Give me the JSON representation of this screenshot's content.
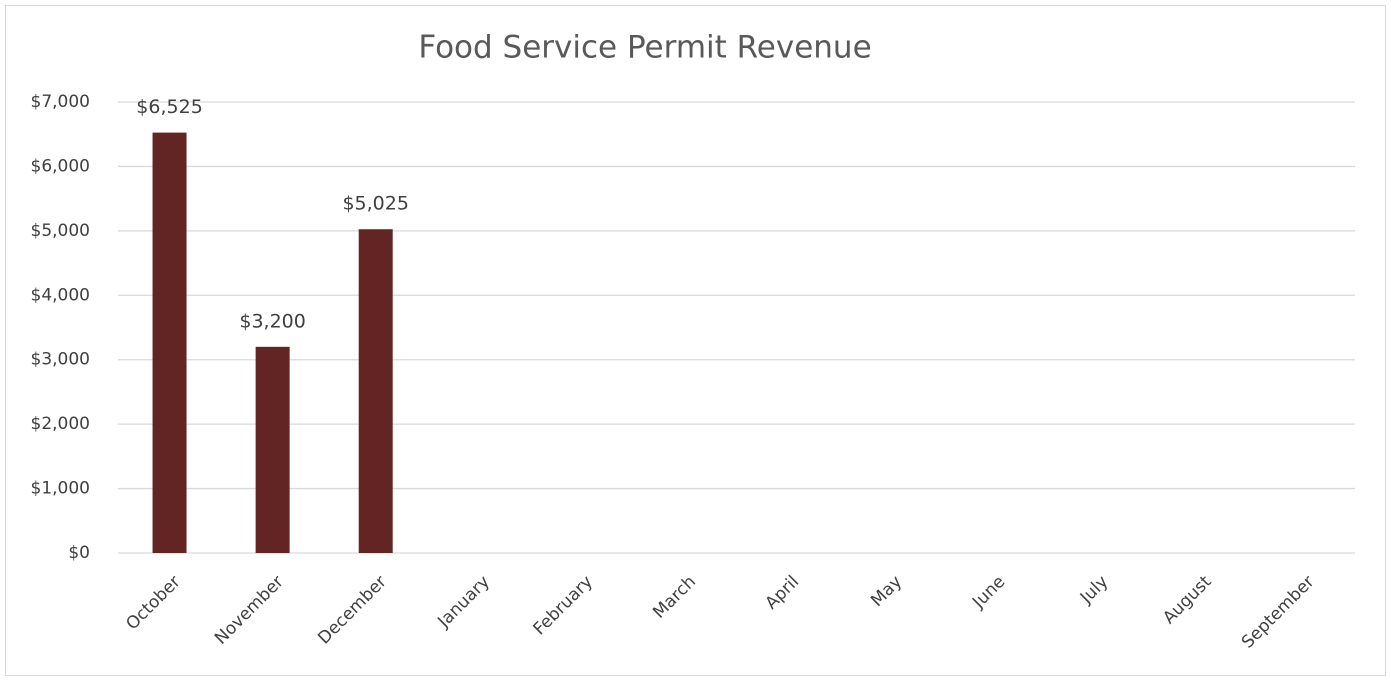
{
  "chart_data": {
    "type": "bar",
    "title": "Food Service Permit Revenue",
    "categories": [
      "October",
      "November",
      "December",
      "January",
      "February",
      "March",
      "April",
      "May",
      "June",
      "July",
      "August",
      "September"
    ],
    "values": [
      6525,
      3200,
      5025,
      null,
      null,
      null,
      null,
      null,
      null,
      null,
      null,
      null
    ],
    "value_labels": [
      "$6,525",
      "$3,200",
      "$5,025",
      null,
      null,
      null,
      null,
      null,
      null,
      null,
      null,
      null
    ],
    "color": "#632523",
    "ylim": [
      0,
      7000
    ],
    "yticks": [
      {
        "value": 0,
        "label": "$0"
      },
      {
        "value": 1000,
        "label": "$1,000"
      },
      {
        "value": 2000,
        "label": "$2,000"
      },
      {
        "value": 3000,
        "label": "$3,000"
      },
      {
        "value": 4000,
        "label": "$4,000"
      },
      {
        "value": 5000,
        "label": "$5,000"
      },
      {
        "value": 6000,
        "label": "$6,000"
      },
      {
        "value": 7000,
        "label": "$7,000"
      }
    ],
    "grid": true
  }
}
